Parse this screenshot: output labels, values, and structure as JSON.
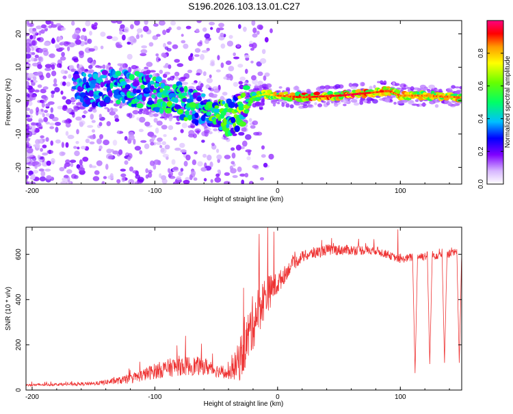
{
  "title": "S196.2026.103.13.01.C27",
  "colors": {
    "snr_line": "#ee3333",
    "axis": "#000000"
  },
  "chart_data": [
    {
      "type": "heatmap",
      "xlabel": "Height of straight line (km)",
      "ylabel": "Frequency (Hz)",
      "xlim": [
        -205,
        150
      ],
      "ylim": [
        -25,
        24
      ],
      "xticks": [
        -200,
        -100,
        0,
        100
      ],
      "xtick_labels": [
        "-200",
        "-100",
        "0",
        "100"
      ],
      "yticks": [
        -20,
        -10,
        0,
        10,
        20
      ],
      "ytick_labels": [
        "-20",
        "-10",
        "0",
        "10",
        "20"
      ],
      "colorbar": {
        "label": "Normalized spectral amplitude",
        "range": [
          0,
          1
        ],
        "ticks": [
          0.0,
          0.2,
          0.4,
          0.6,
          0.8
        ],
        "tick_labels": [
          "0.0",
          "0.2",
          "0.4",
          "0.6",
          "0.8"
        ]
      },
      "ridge": [
        {
          "x": -160,
          "y": 3
        },
        {
          "x": -140,
          "y": 4
        },
        {
          "x": -125,
          "y": 4
        },
        {
          "x": -110,
          "y": 3
        },
        {
          "x": -95,
          "y": 2
        },
        {
          "x": -80,
          "y": 0
        },
        {
          "x": -65,
          "y": -2
        },
        {
          "x": -50,
          "y": -3
        },
        {
          "x": -40,
          "y": -5
        },
        {
          "x": -30,
          "y": -3
        },
        {
          "x": -20,
          "y": 1
        },
        {
          "x": -10,
          "y": 2
        },
        {
          "x": 0,
          "y": 1.5
        },
        {
          "x": 20,
          "y": 1
        },
        {
          "x": 50,
          "y": 1.5
        },
        {
          "x": 80,
          "y": 2.5
        },
        {
          "x": 90,
          "y": 3
        },
        {
          "x": 100,
          "y": 1.5
        },
        {
          "x": 120,
          "y": 1.5
        },
        {
          "x": 150,
          "y": 1
        }
      ],
      "intensity": [
        {
          "x": -205,
          "v": 0.1
        },
        {
          "x": -160,
          "v": 0.15
        },
        {
          "x": -120,
          "v": 0.25
        },
        {
          "x": -90,
          "v": 0.35
        },
        {
          "x": -60,
          "v": 0.35
        },
        {
          "x": -35,
          "v": 0.4
        },
        {
          "x": -20,
          "v": 0.6
        },
        {
          "x": 0,
          "v": 0.85
        },
        {
          "x": 60,
          "v": 0.95
        },
        {
          "x": 100,
          "v": 0.85
        },
        {
          "x": 150,
          "v": 0.85
        }
      ]
    },
    {
      "type": "line",
      "xlabel": "Height of straight line (km)",
      "ylabel": "SNR (10 * v/v)",
      "xlim": [
        -205,
        150
      ],
      "ylim": [
        0,
        720
      ],
      "xticks": [
        -200,
        -100,
        0,
        100
      ],
      "xtick_labels": [
        "-200",
        "-100",
        "0",
        "100"
      ],
      "yticks": [
        0,
        200,
        400,
        600
      ],
      "ytick_labels": [
        "0",
        "200",
        "400",
        "600"
      ],
      "series": [
        {
          "name": "SNR",
          "envelope": [
            {
              "x": -205,
              "base": 20,
              "amp": 10
            },
            {
              "x": -150,
              "base": 25,
              "amp": 15
            },
            {
              "x": -120,
              "base": 40,
              "amp": 40
            },
            {
              "x": -100,
              "base": 70,
              "amp": 70
            },
            {
              "x": -80,
              "base": 90,
              "amp": 90
            },
            {
              "x": -60,
              "base": 90,
              "amp": 80
            },
            {
              "x": -40,
              "base": 60,
              "amp": 40
            },
            {
              "x": -30,
              "base": 100,
              "amp": 200
            },
            {
              "x": -20,
              "base": 250,
              "amp": 250
            },
            {
              "x": -10,
              "base": 380,
              "amp": 180
            },
            {
              "x": 0,
              "base": 450,
              "amp": 100
            },
            {
              "x": 10,
              "base": 530,
              "amp": 60
            },
            {
              "x": 20,
              "base": 580,
              "amp": 50
            },
            {
              "x": 40,
              "base": 610,
              "amp": 50
            },
            {
              "x": 80,
              "base": 610,
              "amp": 40
            },
            {
              "x": 100,
              "base": 570,
              "amp": 30
            },
            {
              "x": 110,
              "base": 580,
              "amp": 40
            },
            {
              "x": 150,
              "base": 600,
              "amp": 40
            }
          ],
          "spikes": [
            {
              "x": -75,
              "y": 240
            },
            {
              "x": -62,
              "y": 205
            },
            {
              "x": -15,
              "y": 690
            },
            {
              "x": -8,
              "y": 720
            },
            {
              "x": -3,
              "y": 700
            },
            {
              "x": 98,
              "y": 710
            }
          ],
          "dips": [
            {
              "x": 112,
              "y": 75,
              "w": 2
            },
            {
              "x": 124,
              "y": 115,
              "w": 2
            },
            {
              "x": 136,
              "y": 120,
              "w": 2
            },
            {
              "x": 148,
              "y": 120,
              "w": 2
            }
          ]
        }
      ]
    }
  ]
}
